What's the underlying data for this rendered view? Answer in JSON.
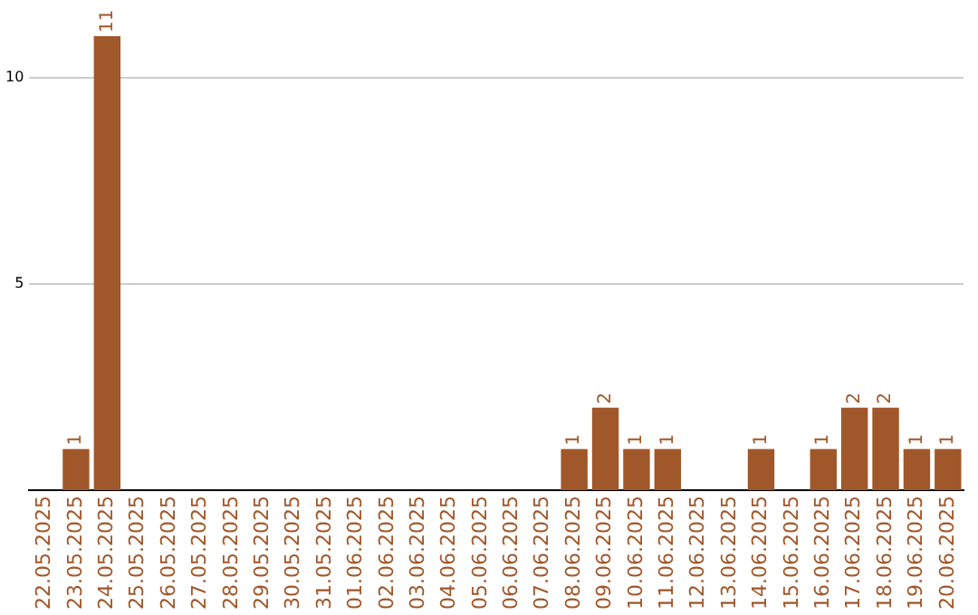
{
  "chart_data": {
    "type": "bar",
    "categories": [
      "22.05.2025",
      "23.05.2025",
      "24.05.2025",
      "25.05.2025",
      "26.05.2025",
      "27.05.2025",
      "28.05.2025",
      "29.05.2025",
      "30.05.2025",
      "31.05.2025",
      "01.06.2025",
      "02.06.2025",
      "03.06.2025",
      "04.06.2025",
      "05.06.2025",
      "06.06.2025",
      "07.06.2025",
      "08.06.2025",
      "09.06.2025",
      "10.06.2025",
      "11.06.2025",
      "12.06.2025",
      "13.06.2025",
      "14.06.2025",
      "15.06.2025",
      "16.06.2025",
      "17.06.2025",
      "18.06.2025",
      "19.06.2025",
      "20.06.2025"
    ],
    "values": [
      0,
      1,
      11,
      0,
      0,
      0,
      0,
      0,
      0,
      0,
      0,
      0,
      0,
      0,
      0,
      0,
      0,
      1,
      2,
      1,
      1,
      0,
      0,
      1,
      0,
      1,
      2,
      2,
      1,
      1
    ],
    "value_labels": [
      null,
      "1",
      "11",
      null,
      null,
      null,
      null,
      null,
      null,
      null,
      null,
      null,
      null,
      null,
      null,
      null,
      null,
      "1",
      "2",
      "1",
      "1",
      null,
      null,
      "1",
      null,
      "1",
      "2",
      "2",
      "1",
      "1"
    ],
    "color": "#a0572a",
    "ylim": [
      0,
      11
    ],
    "yticks": [
      5,
      10
    ],
    "grid": "y",
    "legend": false
  }
}
